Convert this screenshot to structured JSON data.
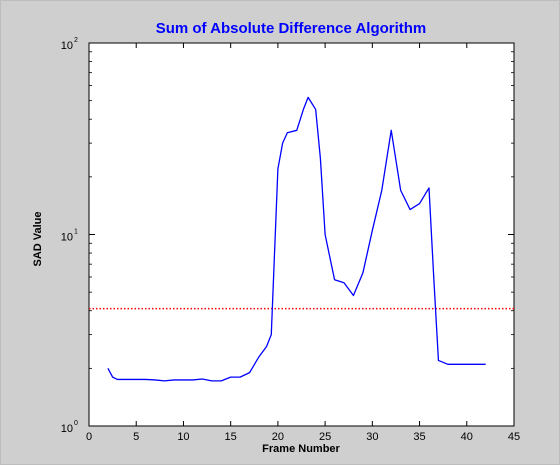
{
  "chart_data": {
    "type": "line",
    "title": "Sum of Absolute Difference Algorithm",
    "xlabel": "Frame Number",
    "ylabel": "SAD Value",
    "xlim": [
      0,
      45
    ],
    "ylim": [
      1,
      100
    ],
    "y_scale": "log",
    "grid": false,
    "legend": "none",
    "x_ticks": [
      {
        "value": 0,
        "label": "0"
      },
      {
        "value": 5,
        "label": "5"
      },
      {
        "value": 10,
        "label": "10"
      },
      {
        "value": 15,
        "label": "15"
      },
      {
        "value": 20,
        "label": "20"
      },
      {
        "value": 25,
        "label": "25"
      },
      {
        "value": 30,
        "label": "30"
      },
      {
        "value": 35,
        "label": "35"
      },
      {
        "value": 40,
        "label": "40"
      },
      {
        "value": 45,
        "label": "45"
      }
    ],
    "y_ticks": [
      {
        "value": 1,
        "base": "10",
        "exp": "0"
      },
      {
        "value": 10,
        "base": "10",
        "exp": "1"
      },
      {
        "value": 100,
        "base": "10",
        "exp": "2"
      }
    ],
    "series": [
      {
        "color": "#0000ff",
        "x": [
          2,
          2.5,
          3,
          4,
          5,
          6,
          7,
          8,
          9,
          10,
          11,
          12,
          13,
          14,
          15,
          16,
          17,
          18,
          18.8,
          19.3,
          20,
          20.5,
          21,
          22,
          22.7,
          23.2,
          24,
          24.5,
          25,
          26,
          27,
          28,
          29,
          30,
          31,
          32,
          33,
          34,
          35,
          36,
          36.5,
          37,
          38,
          39,
          40,
          41,
          42
        ],
        "y": [
          2.0,
          1.8,
          1.75,
          1.75,
          1.75,
          1.75,
          1.74,
          1.72,
          1.74,
          1.74,
          1.74,
          1.76,
          1.72,
          1.72,
          1.8,
          1.8,
          1.9,
          2.3,
          2.6,
          3.0,
          22,
          30,
          34,
          35,
          45,
          52,
          45,
          25,
          10,
          5.8,
          5.6,
          4.8,
          6.3,
          10.5,
          17,
          35,
          17,
          13.5,
          14.5,
          17.5,
          6,
          2.2,
          2.1,
          2.1,
          2.1,
          2.1,
          2.1
        ]
      }
    ],
    "threshold": {
      "value": 4.1,
      "color": "#ff0000",
      "style": "dotted"
    }
  }
}
